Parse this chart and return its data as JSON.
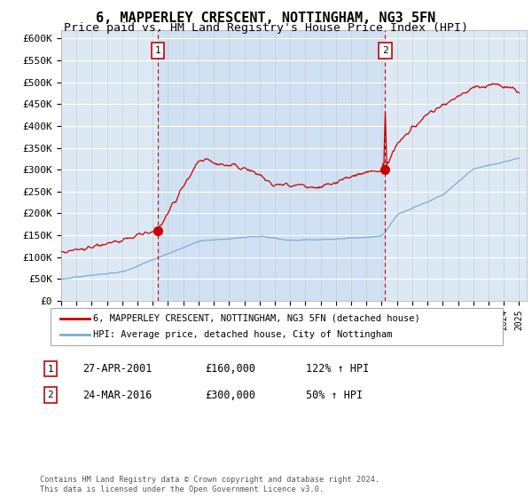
{
  "title": "6, MAPPERLEY CRESCENT, NOTTINGHAM, NG3 5FN",
  "subtitle": "Price paid vs. HM Land Registry's House Price Index (HPI)",
  "ylim": [
    0,
    620000
  ],
  "yticks": [
    0,
    50000,
    100000,
    150000,
    200000,
    250000,
    300000,
    350000,
    400000,
    450000,
    500000,
    550000,
    600000
  ],
  "ytick_labels": [
    "£0",
    "£50K",
    "£100K",
    "£150K",
    "£200K",
    "£250K",
    "£300K",
    "£350K",
    "£400K",
    "£450K",
    "£500K",
    "£550K",
    "£600K"
  ],
  "xlim_start": 1995.0,
  "xlim_end": 2025.5,
  "plot_bg_color": "#dce9f5",
  "sale1_year": 2001.32,
  "sale1_price": 160000,
  "sale2_year": 2016.23,
  "sale2_price": 300000,
  "legend_line1": "6, MAPPERLEY CRESCENT, NOTTINGHAM, NG3 5FN (detached house)",
  "legend_line2": "HPI: Average price, detached house, City of Nottingham",
  "annotation1_label": "1",
  "annotation1_date": "27-APR-2001",
  "annotation1_price": "£160,000",
  "annotation1_hpi": "122% ↑ HPI",
  "annotation2_label": "2",
  "annotation2_date": "24-MAR-2016",
  "annotation2_price": "£300,000",
  "annotation2_hpi": "50% ↑ HPI",
  "footer": "Contains HM Land Registry data © Crown copyright and database right 2024.\nThis data is licensed under the Open Government Licence v3.0.",
  "red_line_color": "#cc0000",
  "blue_line_color": "#7aadd4",
  "shade_color": "#d0e4f5",
  "title_fontsize": 11,
  "subtitle_fontsize": 9.5
}
